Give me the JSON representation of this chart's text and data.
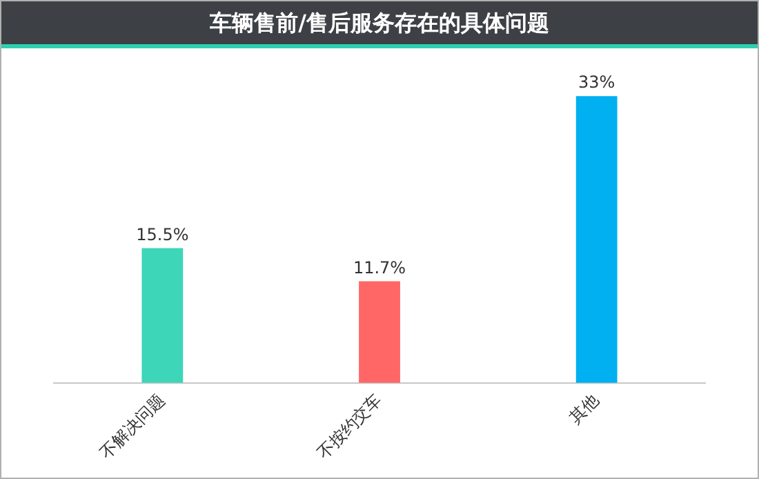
{
  "chart_data": {
    "type": "bar",
    "title": "车辆售前/售后服务存在的具体问题",
    "categories": [
      "不解决问题",
      "不按约交车",
      "其他"
    ],
    "values": [
      15.5,
      11.7,
      33
    ],
    "colors": [
      "#3dd6b8",
      "#ff6666",
      "#00b0f0"
    ],
    "value_labels": [
      "15.5%",
      "11.7%",
      "33%"
    ],
    "grid": false,
    "legend": false
  }
}
